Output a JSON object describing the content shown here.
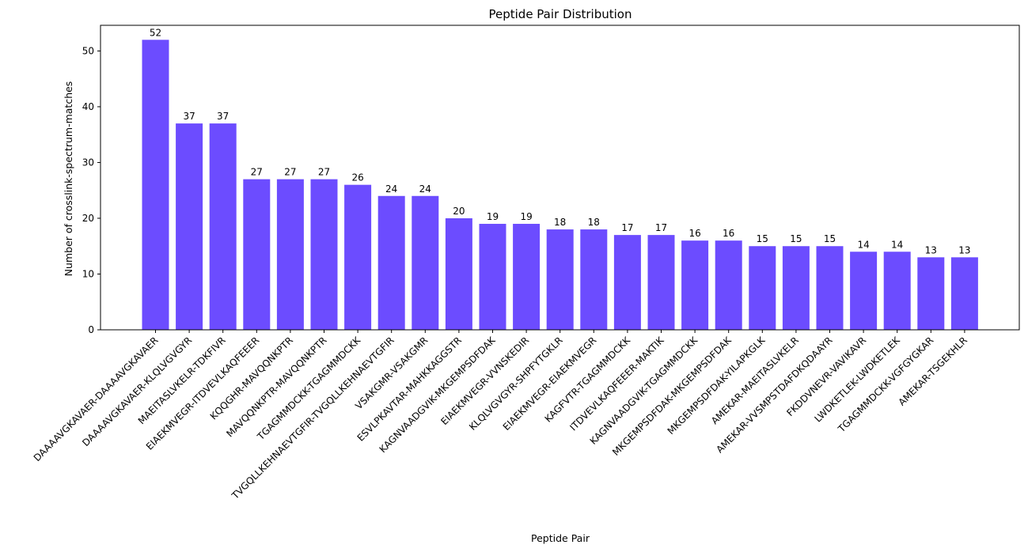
{
  "chart_data": {
    "type": "bar",
    "title": "Peptide Pair Distribution",
    "xlabel": "Peptide Pair",
    "ylabel": "Number of crosslink-spectrum-matches",
    "ylim": [
      0,
      54.6
    ],
    "yticks": [
      0,
      10,
      20,
      30,
      40,
      50
    ],
    "grid": false,
    "bar_color": "#6c4cff",
    "categories": [
      "DAAAAVGKAVAER-DAAAAVGKAVAER",
      "DAAAAVGKAVAER-KLQLVGVGYR",
      "MAEITASLVKELR-TDKFIVR",
      "EIAEKMVEGR-ITDVEVLKAQFEEER",
      "KQQGHR-MAVQQNKPTR",
      "MAVQQNKPTR-MAVQQNKPTR",
      "TGAGMMDCKK-TGAGMMDCKK",
      "TVGQLLKEHNAEVTGFIR-TVGQLLKEHNAEVTGFIR",
      "VSAKGMR-VSAKGMR",
      "ESVLPKAVTAR-MAHKKAGGSTR",
      "KAGNVAADGVIK-MKGEMPSDFDAK",
      "EIAEKMVEGR-VVNSKEDIR",
      "KLQLVGVGYR-SHPFYTGKLR",
      "EIAEKMVEGR-EIAEKMVEGR",
      "KAGFVTR-TGAGMMDCKK",
      "ITDVEVLKAQFEEER-MAKTIK",
      "KAGNVAADGVIK-TGAGMMDCKK",
      "MKGEMPSDFDAK-MKGEMPSDFDAK",
      "MKGEMPSDFDAK-YILAPKGLK",
      "AMEKAR-MAEITASLVKELR",
      "AMEKAR-VVSMPSTDAFDKQDAAYR",
      "FKDDVNEVR-VAVIKAVR",
      "LWDKETLEK-LWDKETLEK",
      "TGAGMMDCKK-VGFGYGKAR",
      "AMEKAR-TSGEKHLR"
    ],
    "values": [
      52,
      37,
      37,
      27,
      27,
      27,
      26,
      24,
      24,
      20,
      19,
      19,
      18,
      18,
      17,
      17,
      16,
      16,
      15,
      15,
      15,
      14,
      14,
      13,
      13
    ]
  }
}
